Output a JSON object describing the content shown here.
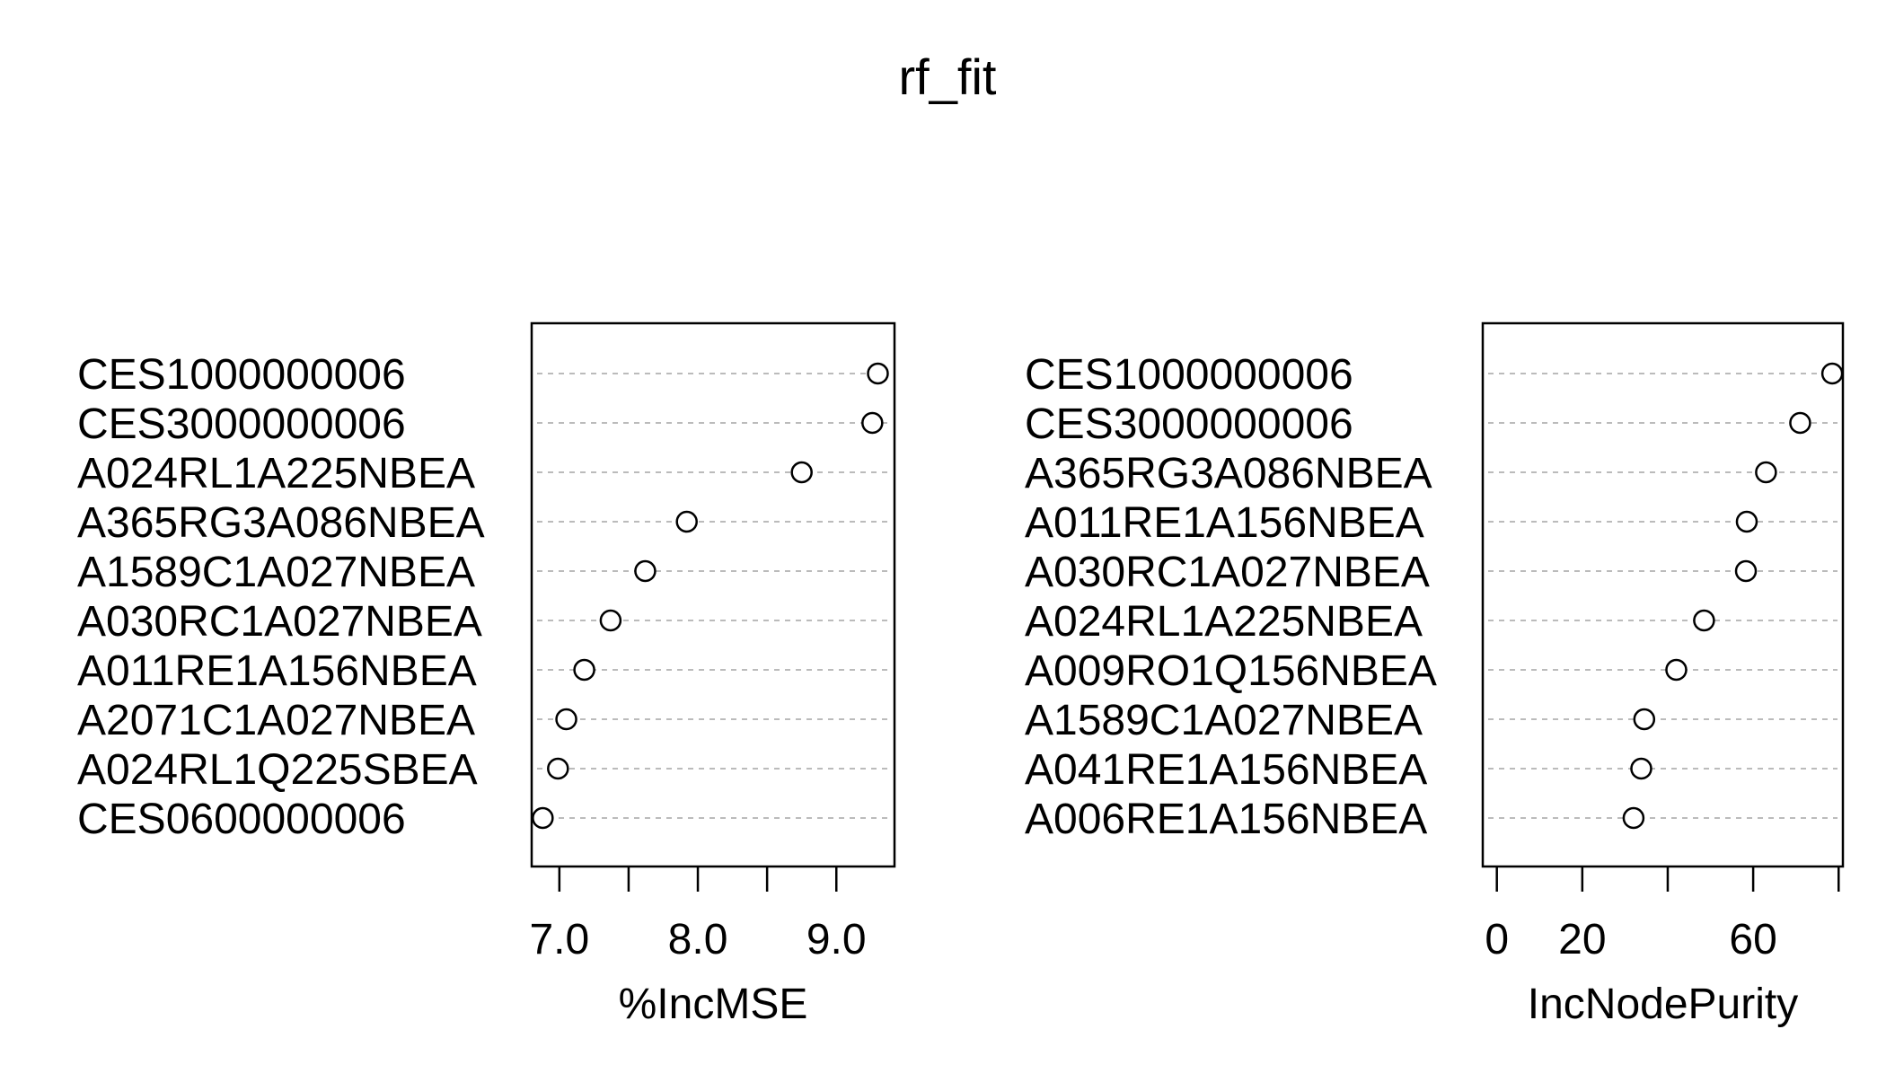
{
  "chart_data": [
    {
      "type": "scatter",
      "title": "rf_fit",
      "panel": "left",
      "xlabel": "%IncMSE",
      "ylabel": "",
      "xlim": [
        6.8,
        9.42
      ],
      "xticks": [
        7.0,
        7.5,
        8.0,
        8.5,
        9.0
      ],
      "xtick_labels": [
        "7.0",
        "",
        "8.0",
        "",
        "9.0"
      ],
      "grid": "dashed horizontal guide lines per variable",
      "categories": [
        "CES1000000006",
        "CES3000000006",
        "A024RL1A225NBEA",
        "A365RG3A086NBEA",
        "A1589C1A027NBEA",
        "A030RC1A027NBEA",
        "A011RE1A156NBEA",
        "A2071C1A027NBEA",
        "A024RL1Q225SBEA",
        "CES0600000006"
      ],
      "values": [
        9.3,
        9.26,
        8.75,
        7.92,
        7.62,
        7.37,
        7.18,
        7.05,
        6.99,
        6.88
      ]
    },
    {
      "type": "scatter",
      "panel": "right",
      "xlabel": "IncNodePurity",
      "ylabel": "",
      "xlim": [
        -3.3,
        81
      ],
      "xticks": [
        0,
        20,
        40,
        60,
        80
      ],
      "xtick_labels": [
        "0",
        "20",
        "",
        "60",
        ""
      ],
      "grid": "dashed horizontal guide lines per variable",
      "categories": [
        "CES1000000006",
        "CES3000000006",
        "A365RG3A086NBEA",
        "A011RE1A156NBEA",
        "A030RC1A027NBEA",
        "A024RL1A225NBEA",
        "A009RO1Q156NBEA",
        "A1589C1A027NBEA",
        "A041RE1A156NBEA",
        "A006RE1A156NBEA"
      ],
      "values": [
        78.5,
        71,
        63,
        58.5,
        58.3,
        48.5,
        42,
        34.5,
        33.8,
        32
      ]
    }
  ],
  "colors": {
    "point_stroke": "#000000",
    "guide": "#bbbbbb",
    "frame": "#000000",
    "background": "#ffffff"
  }
}
